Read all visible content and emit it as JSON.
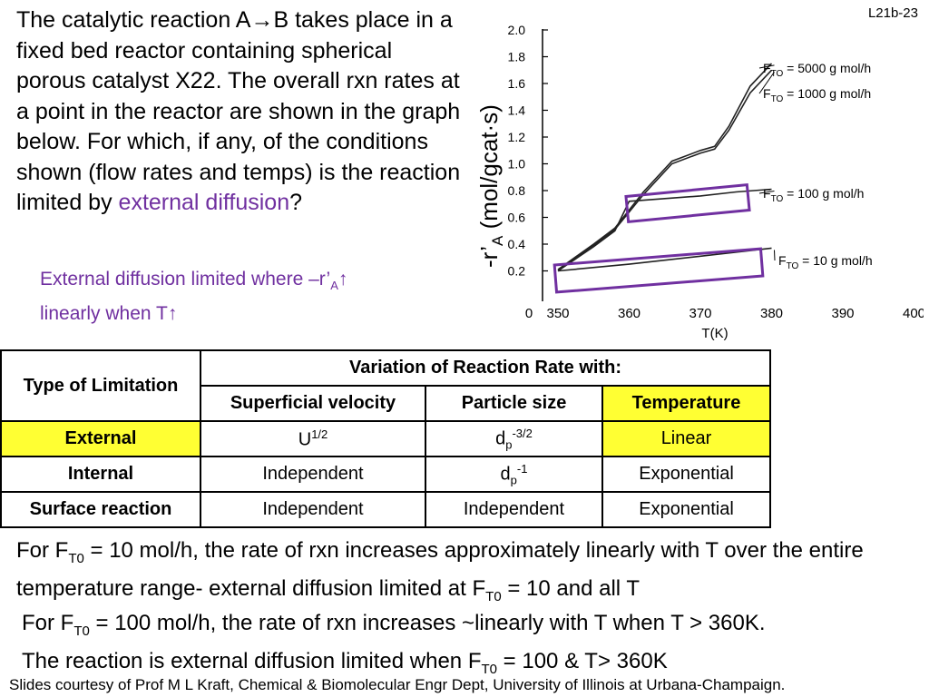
{
  "slide_number": "L21b-23",
  "question": {
    "text": "The catalytic reaction A→B takes place in a fixed bed reactor containing spherical porous catalyst X22.  The overall rxn rates at a point in the reactor are shown in the graph below.  For which, if any, of the conditions shown (flow rates and temps) is the reaction limited by ",
    "highlight": "external diffusion",
    "end": "?"
  },
  "answer": {
    "line1_a": "External diffusion limited where –r’",
    "line1_sub": "A",
    "line1_b": "↑",
    "line2": "linearly when T↑"
  },
  "chart_data": {
    "type": "line",
    "xlabel": "T(K)",
    "ylabel": "-r’A (mol/gcat·s)",
    "xlim": [
      345,
      400
    ],
    "ylim": [
      0,
      2.0
    ],
    "x_ticks": [
      "0",
      "350",
      "360",
      "370",
      "380",
      "390",
      "400"
    ],
    "y_ticks": [
      "2.0",
      "1.8",
      "1.6",
      "1.4",
      "1.2",
      "1.0",
      "0.8",
      "0.6",
      "0.4",
      "0.2"
    ],
    "grid": false,
    "series": [
      {
        "name": "FTO = 5000 g mol/h",
        "x": [
          350,
          355,
          358,
          362,
          366,
          370,
          372,
          374,
          377,
          380
        ],
        "y": [
          0.21,
          0.4,
          0.52,
          0.79,
          1.02,
          1.1,
          1.13,
          1.28,
          1.58,
          1.75
        ]
      },
      {
        "name": "FTO = 1000 g mol/h",
        "x": [
          350,
          355,
          358,
          362,
          366,
          370,
          372,
          374,
          377,
          380
        ],
        "y": [
          0.2,
          0.39,
          0.51,
          0.77,
          1.0,
          1.08,
          1.11,
          1.25,
          1.53,
          1.7
        ]
      },
      {
        "name": "FTO = 100 g mol/h",
        "x": [
          350,
          355,
          358,
          360,
          365,
          370,
          375,
          380
        ],
        "y": [
          0.2,
          0.38,
          0.5,
          0.72,
          0.74,
          0.76,
          0.79,
          0.81
        ]
      },
      {
        "name": "FTO = 10 g mol/h",
        "x": [
          350,
          360,
          370,
          380
        ],
        "y": [
          0.2,
          0.25,
          0.31,
          0.37
        ]
      }
    ]
  },
  "table": {
    "type_header": "Type of Limitation",
    "variation_header": "Variation of Reaction Rate with:",
    "col_headers": [
      "Superficial velocity",
      "Particle size",
      "Temperature"
    ],
    "rows": [
      {
        "name": "External",
        "sv": "U",
        "sv_sup": "1/2",
        "ps": "d",
        "ps_sub": "p",
        "ps_sup": "-3/2",
        "temp": "Linear"
      },
      {
        "name": "Internal",
        "sv": "Independent",
        "ps": "d",
        "ps_sub": "p",
        "ps_sup": "-1",
        "temp": "Exponential"
      },
      {
        "name": "Surface reaction",
        "sv": "Independent",
        "ps": "Independent",
        "temp": "Exponential"
      }
    ]
  },
  "conclusion1": {
    "a": "For F",
    "sub1": "T0",
    "b": " = 10 mol/h, the rate of rxn increases approximately linearly with T over the entire temperature range- external diffusion limited at F",
    "sub2": "T0",
    "c": " = 10 and all T"
  },
  "conclusion2": {
    "a": "For F",
    "sub1": "T0",
    "b": " = 100 mol/h, the rate of rxn increases ~linearly with T when T > 360K.",
    "c": "The reaction is external diffusion limited when F",
    "sub2": "T0",
    "d": " = 100 & T> 360K"
  },
  "credit": "Slides courtesy of Prof M L Kraft, Chemical & Biomolecular Engr Dept, University of Illinois at Urbana-Champaign.",
  "colors": {
    "accent": "#7030a0",
    "highlight": "#ffff33"
  }
}
